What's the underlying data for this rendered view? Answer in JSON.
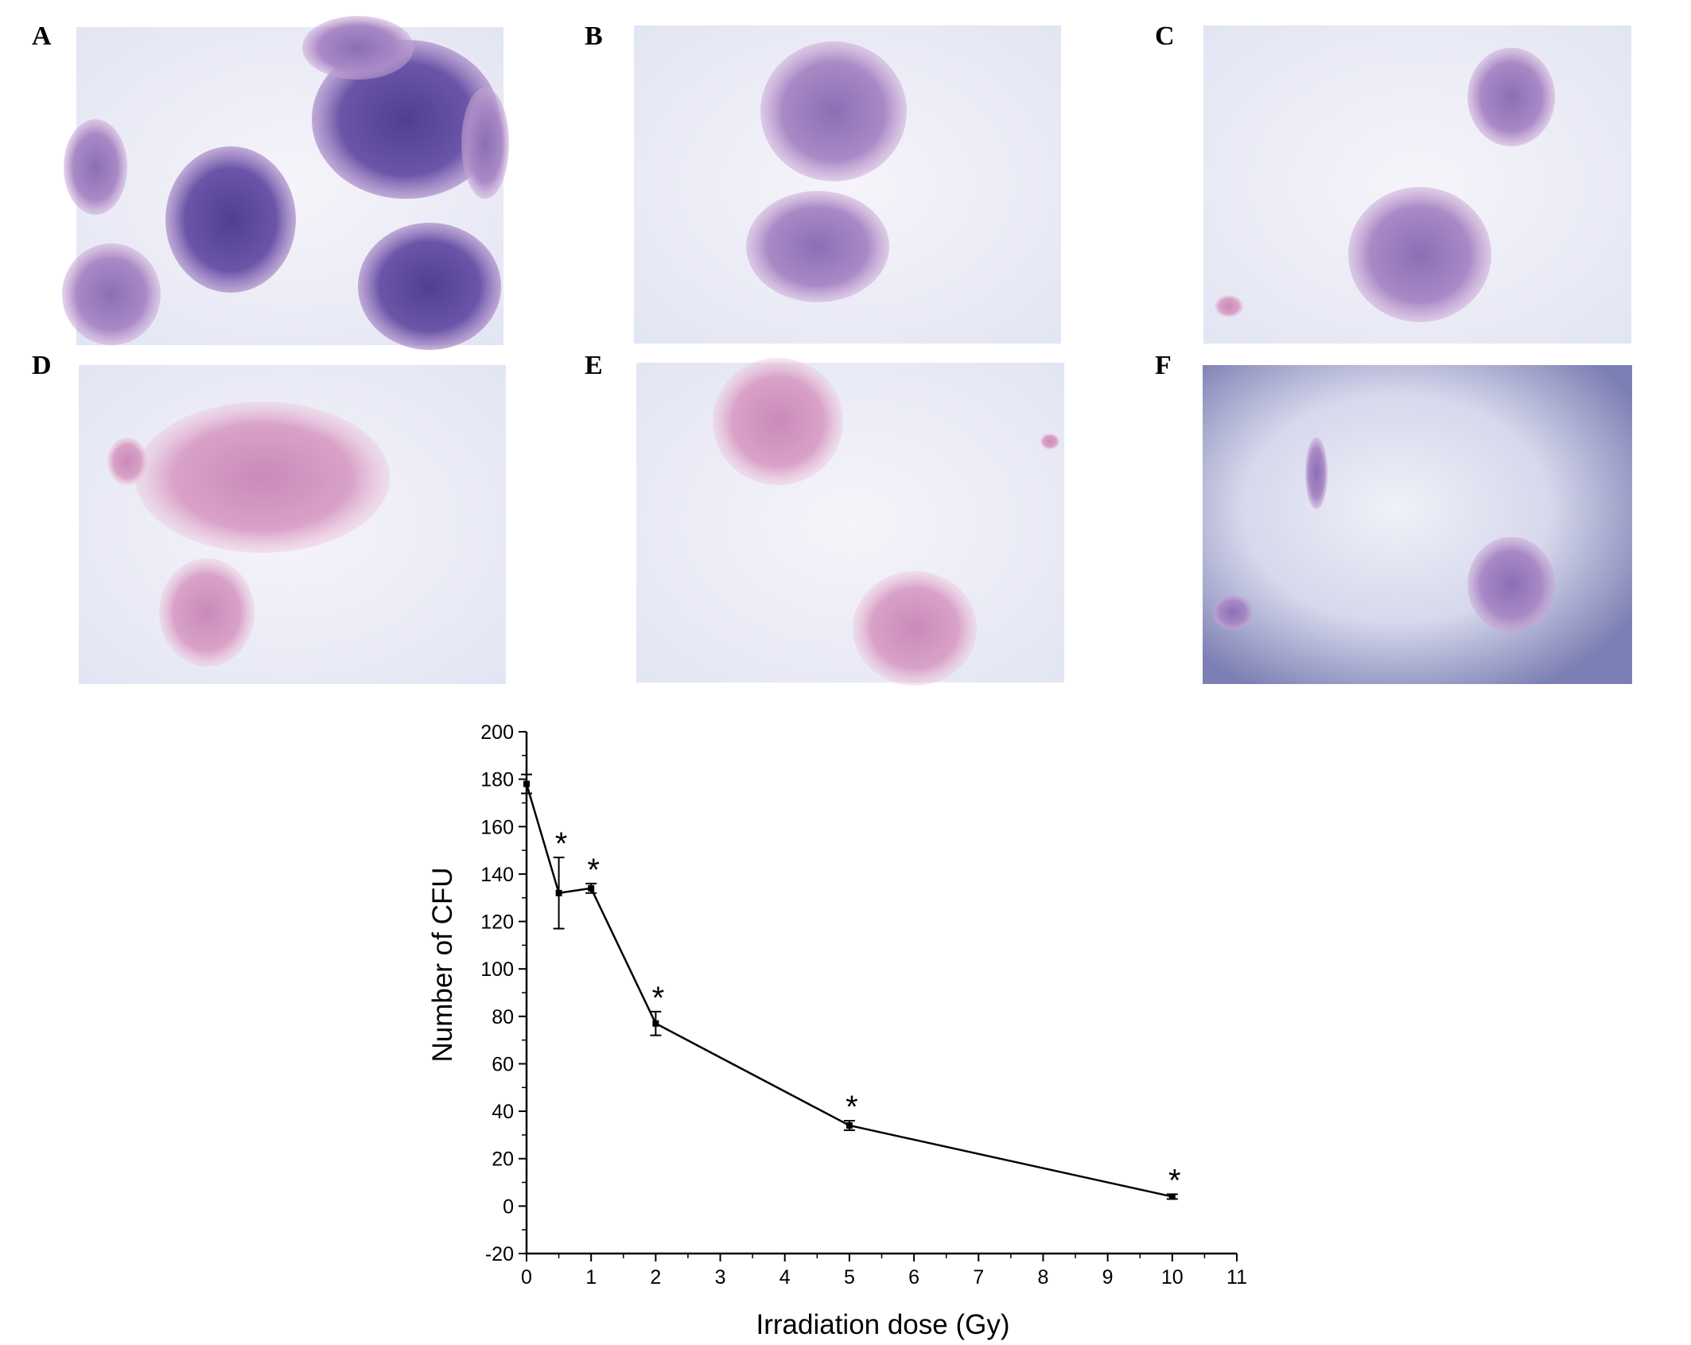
{
  "panels": [
    {
      "letter": "A",
      "colonies": "dense"
    },
    {
      "letter": "B",
      "colonies": "two"
    },
    {
      "letter": "C",
      "colonies": "two"
    },
    {
      "letter": "D",
      "colonies": "two"
    },
    {
      "letter": "E",
      "colonies": "two"
    },
    {
      "letter": "F",
      "colonies": "sparse"
    }
  ],
  "colors": {
    "stain_dark": "#5a4a9e",
    "stain_mid": "#8a6fb4",
    "stain_light": "#c79ac8",
    "stain_pink": "#d98fb8",
    "background_light": "#eef0f8",
    "background_dark": "#7c7fb3",
    "line": "#000000"
  },
  "chart_data": {
    "type": "line",
    "title": "",
    "xlabel": "Irradiation dose (Gy)",
    "ylabel": "Number of CFU",
    "xlim": [
      0,
      11
    ],
    "ylim": [
      -20,
      200
    ],
    "x_ticks": [
      "0",
      "1",
      "2",
      "3",
      "4",
      "5",
      "6",
      "7",
      "8",
      "9",
      "10",
      "11"
    ],
    "y_ticks": [
      "-20",
      "0",
      "20",
      "40",
      "60",
      "80",
      "100",
      "120",
      "140",
      "160",
      "180",
      "200"
    ],
    "grid": false,
    "legend": "none",
    "significance_marker": "*",
    "series": [
      {
        "x": [
          0,
          0.5,
          1,
          2,
          5,
          10
        ],
        "y": [
          178,
          132,
          134,
          77,
          34,
          4
        ],
        "error": [
          4,
          15,
          2,
          5,
          2,
          1
        ],
        "significant": [
          false,
          true,
          true,
          true,
          true,
          true
        ]
      }
    ]
  }
}
